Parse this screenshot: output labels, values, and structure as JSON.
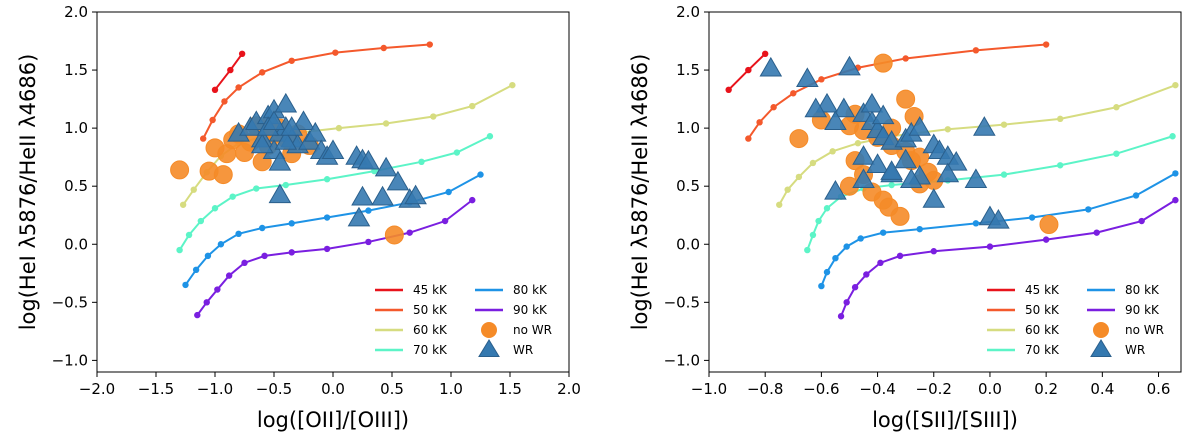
{
  "colors": {
    "45 kK": "#e8131b",
    "50 kK": "#f4592c",
    "60 kK": "#d6dc80",
    "70 kK": "#5cf4c7",
    "80 kK": "#1e93e6",
    "90 kK": "#7a1fe0",
    "no WR": "#f58b28",
    "WR": "#3579b0"
  },
  "chart_data": [
    {
      "type": "scatter",
      "xlabel": "log([OII]/[OIII])",
      "ylabel": "log(HeI λ5876/HeII λ4686)",
      "xlim": [
        -2.0,
        2.0
      ],
      "ylim": [
        -1.1,
        2.0
      ],
      "xticks": [
        "−2.0",
        "−1.5",
        "−1.0",
        "−0.5",
        "0.0",
        "0.5",
        "1.0",
        "1.5",
        "2.0"
      ],
      "yticks": [
        "−1.0",
        "−0.5",
        "0.0",
        "0.5",
        "1.0",
        "1.5",
        "2.0"
      ],
      "series": [
        {
          "name": "45 kK",
          "kind": "line",
          "x": [
            -1.0,
            -0.87,
            -0.77
          ],
          "y": [
            1.33,
            1.5,
            1.64
          ]
        },
        {
          "name": "50 kK",
          "kind": "line",
          "x": [
            -1.1,
            -1.02,
            -0.92,
            -0.8,
            -0.6,
            -0.35,
            0.02,
            0.43,
            0.82
          ],
          "y": [
            0.91,
            1.07,
            1.23,
            1.35,
            1.48,
            1.58,
            1.65,
            1.69,
            1.72
          ]
        },
        {
          "name": "60 kK",
          "kind": "line",
          "x": [
            -1.27,
            -1.18,
            -1.07,
            -0.95,
            -0.8,
            -0.58,
            -0.3,
            0.05,
            0.45,
            0.85,
            1.18,
            1.52
          ],
          "y": [
            0.34,
            0.47,
            0.62,
            0.76,
            0.87,
            0.93,
            0.96,
            1.0,
            1.04,
            1.1,
            1.19,
            1.37
          ]
        },
        {
          "name": "70 kK",
          "kind": "line",
          "x": [
            -1.3,
            -1.22,
            -1.12,
            -1.0,
            -0.85,
            -0.65,
            -0.4,
            -0.05,
            0.35,
            0.75,
            1.05,
            1.33
          ],
          "y": [
            -0.05,
            0.08,
            0.2,
            0.31,
            0.41,
            0.48,
            0.51,
            0.56,
            0.63,
            0.71,
            0.79,
            0.93
          ]
        },
        {
          "name": "80 kK",
          "kind": "line",
          "x": [
            -1.25,
            -1.16,
            -1.06,
            -0.95,
            -0.8,
            -0.6,
            -0.35,
            -0.05,
            0.3,
            0.65,
            0.98,
            1.25
          ],
          "y": [
            -0.35,
            -0.22,
            -0.1,
            0.0,
            0.09,
            0.14,
            0.18,
            0.23,
            0.29,
            0.36,
            0.45,
            0.6
          ]
        },
        {
          "name": "90 kK",
          "kind": "line",
          "x": [
            -1.15,
            -1.07,
            -0.98,
            -0.88,
            -0.75,
            -0.58,
            -0.35,
            -0.05,
            0.3,
            0.65,
            0.95,
            1.18
          ],
          "y": [
            -0.61,
            -0.5,
            -0.39,
            -0.27,
            -0.16,
            -0.1,
            -0.07,
            -0.04,
            0.02,
            0.1,
            0.2,
            0.38
          ]
        },
        {
          "name": "no WR",
          "kind": "circle",
          "x": [
            -1.3,
            -1.05,
            -0.93,
            -1.0,
            -0.9,
            -0.85,
            -0.8,
            -0.7,
            -0.6,
            -0.5,
            -0.4,
            -0.3,
            -0.2,
            -0.75,
            -0.55,
            -0.45,
            -0.65,
            -0.6,
            -0.35,
            0.52
          ],
          "y": [
            0.64,
            0.63,
            0.6,
            0.83,
            0.78,
            0.9,
            0.95,
            0.88,
            1.0,
            0.97,
            0.91,
            0.95,
            0.85,
            0.79,
            0.85,
            1.0,
            1.02,
            0.71,
            0.78,
            0.08
          ]
        },
        {
          "name": "WR",
          "kind": "triangle",
          "x": [
            -0.8,
            -0.7,
            -0.65,
            -0.6,
            -0.55,
            -0.5,
            -0.45,
            -0.4,
            -0.35,
            -0.3,
            -0.25,
            -0.5,
            -0.4,
            -0.6,
            -0.45,
            -0.2,
            -0.15,
            -0.1,
            -0.05,
            0.0,
            -0.55,
            -0.4,
            -0.35,
            0.2,
            0.25,
            0.3,
            0.45,
            0.55,
            0.65,
            0.7,
            0.25,
            0.42,
            0.22,
            -0.45,
            -0.5
          ],
          "y": [
            0.95,
            1.0,
            1.05,
            0.9,
            1.1,
            1.15,
            0.95,
            1.0,
            0.9,
            0.85,
            1.05,
            0.8,
            1.2,
            0.85,
            0.7,
            0.88,
            0.95,
            0.8,
            0.75,
            0.8,
            1.0,
            0.88,
            1.0,
            0.75,
            0.72,
            0.71,
            0.65,
            0.53,
            0.38,
            0.41,
            0.4,
            0.4,
            0.22,
            0.42,
            1.05
          ]
        }
      ],
      "legend": {
        "position": "lower-right",
        "entries": [
          "45 kK",
          "80 kK",
          "50 kK",
          "90 kK",
          "60 kK",
          "no WR",
          "70 kK",
          "WR"
        ]
      }
    },
    {
      "type": "scatter",
      "xlabel": "log([SII]/[SIII])",
      "ylabel": "log(HeI λ5876/HeII λ4686)",
      "xlim": [
        -1.0,
        0.68
      ],
      "ylim": [
        -1.1,
        2.0
      ],
      "xticks": [
        "−1.0",
        "−0.8",
        "−0.6",
        "−0.4",
        "−0.2",
        "0.0",
        "0.2",
        "0.4",
        "0.6"
      ],
      "yticks": [
        "−1.0",
        "−0.5",
        "0.0",
        "0.5",
        "1.0",
        "1.5",
        "2.0"
      ],
      "series": [
        {
          "name": "45 kK",
          "kind": "line",
          "x": [
            -0.93,
            -0.86,
            -0.8
          ],
          "y": [
            1.33,
            1.5,
            1.64
          ]
        },
        {
          "name": "50 kK",
          "kind": "line",
          "x": [
            -0.86,
            -0.82,
            -0.77,
            -0.7,
            -0.6,
            -0.47,
            -0.3,
            -0.05,
            0.2
          ],
          "y": [
            0.91,
            1.05,
            1.18,
            1.3,
            1.42,
            1.52,
            1.6,
            1.67,
            1.72
          ]
        },
        {
          "name": "60 kK",
          "kind": "line",
          "x": [
            -0.75,
            -0.72,
            -0.68,
            -0.63,
            -0.56,
            -0.47,
            -0.35,
            -0.15,
            0.05,
            0.25,
            0.45,
            0.66
          ],
          "y": [
            0.34,
            0.47,
            0.58,
            0.7,
            0.8,
            0.87,
            0.93,
            0.99,
            1.03,
            1.08,
            1.18,
            1.37
          ]
        },
        {
          "name": "70 kK",
          "kind": "line",
          "x": [
            -0.65,
            -0.63,
            -0.61,
            -0.58,
            -0.53,
            -0.45,
            -0.35,
            -0.15,
            0.05,
            0.25,
            0.45,
            0.65
          ],
          "y": [
            -0.05,
            0.08,
            0.2,
            0.31,
            0.41,
            0.48,
            0.51,
            0.55,
            0.6,
            0.68,
            0.78,
            0.93
          ]
        },
        {
          "name": "80 kK",
          "kind": "line",
          "x": [
            -0.6,
            -0.58,
            -0.55,
            -0.51,
            -0.46,
            -0.38,
            -0.25,
            -0.05,
            0.15,
            0.35,
            0.52,
            0.66
          ],
          "y": [
            -0.36,
            -0.24,
            -0.12,
            -0.02,
            0.05,
            0.1,
            0.13,
            0.18,
            0.23,
            0.3,
            0.42,
            0.61
          ]
        },
        {
          "name": "90 kK",
          "kind": "line",
          "x": [
            -0.53,
            -0.51,
            -0.48,
            -0.44,
            -0.39,
            -0.32,
            -0.2,
            0.0,
            0.2,
            0.38,
            0.54,
            0.66
          ],
          "y": [
            -0.62,
            -0.5,
            -0.37,
            -0.26,
            -0.16,
            -0.1,
            -0.06,
            -0.02,
            0.04,
            0.1,
            0.2,
            0.38
          ]
        },
        {
          "name": "no WR",
          "kind": "circle",
          "x": [
            -0.68,
            -0.6,
            -0.5,
            -0.48,
            -0.45,
            -0.4,
            -0.35,
            -0.3,
            -0.25,
            -0.42,
            -0.38,
            -0.36,
            -0.45,
            -0.5,
            -0.28,
            -0.22,
            -0.2,
            -0.3,
            -0.38,
            -0.32,
            -0.25,
            -0.48,
            0.21,
            -0.27,
            -0.35
          ],
          "y": [
            0.91,
            1.07,
            1.02,
            1.12,
            0.98,
            0.92,
            0.85,
            0.8,
            0.75,
            0.45,
            0.38,
            0.32,
            0.6,
            0.5,
            0.72,
            0.62,
            0.55,
            1.25,
            1.56,
            0.24,
            0.52,
            0.72,
            0.17,
            1.1,
            1.0
          ]
        },
        {
          "name": "WR",
          "kind": "triangle",
          "x": [
            -0.78,
            -0.65,
            -0.58,
            -0.52,
            -0.45,
            -0.42,
            -0.4,
            -0.38,
            -0.35,
            -0.3,
            -0.28,
            -0.25,
            -0.2,
            -0.18,
            -0.15,
            -0.12,
            -0.45,
            -0.4,
            -0.35,
            -0.3,
            -0.55,
            -0.5,
            -0.42,
            -0.38,
            -0.55,
            -0.45,
            -0.35,
            -0.25,
            -0.15,
            -0.05,
            -0.02,
            -0.2,
            0.0,
            0.03,
            -0.28,
            -0.62
          ],
          "y": [
            1.51,
            1.42,
            1.2,
            1.16,
            1.12,
            1.05,
            0.98,
            0.92,
            0.88,
            0.9,
            0.95,
            1.0,
            0.85,
            0.8,
            0.75,
            0.7,
            0.75,
            0.68,
            0.6,
            0.72,
            1.05,
            1.52,
            1.2,
            1.1,
            0.45,
            0.55,
            0.62,
            0.58,
            0.6,
            0.55,
            1.0,
            0.38,
            0.23,
            0.2,
            0.55,
            1.16
          ]
        }
      ],
      "legend": {
        "position": "lower-right",
        "entries": [
          "45 kK",
          "80 kK",
          "50 kK",
          "90 kK",
          "60 kK",
          "no WR",
          "70 kK",
          "WR"
        ]
      }
    }
  ]
}
